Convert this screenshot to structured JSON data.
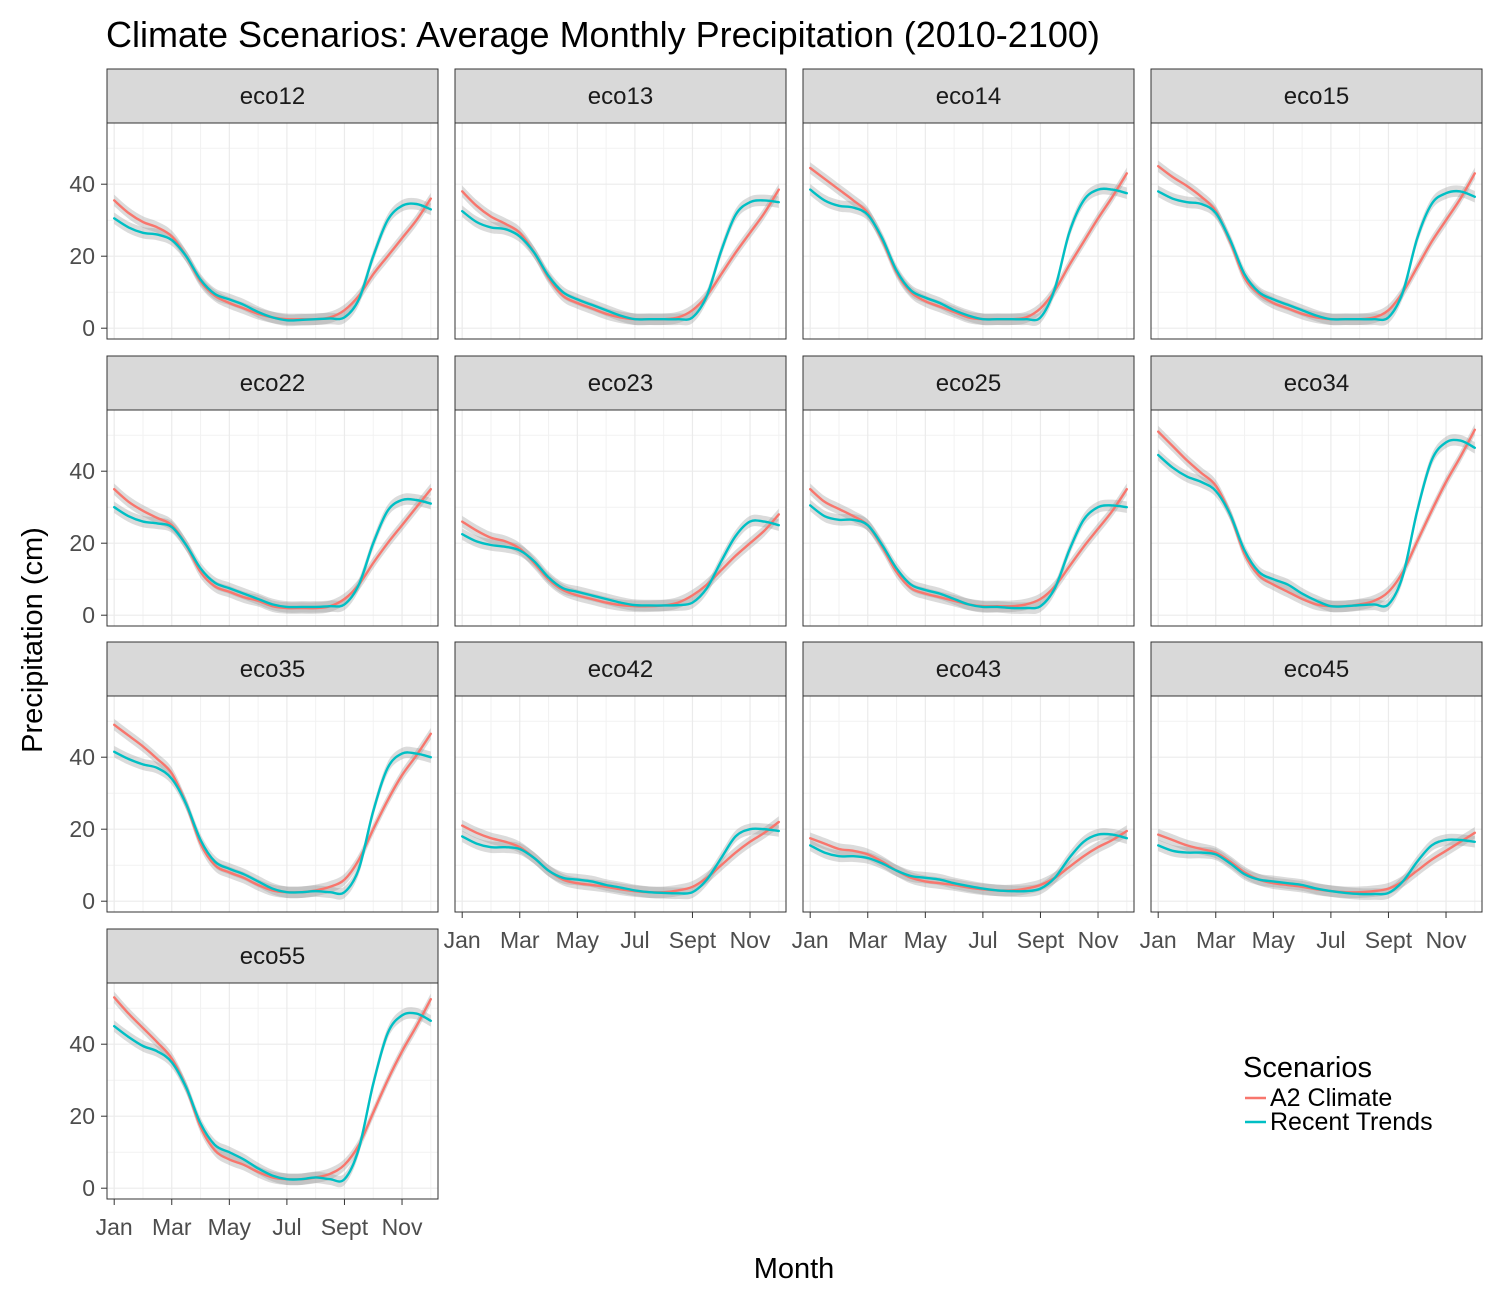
{
  "chart_data": {
    "type": "line",
    "title": "Climate Scenarios: Average Monthly Precipitation (2010-2100)",
    "xlabel": "Month",
    "ylabel": "Precipitation (cm)",
    "x_ticks": [
      "Jan",
      "Mar",
      "May",
      "Jul",
      "Sept",
      "Nov"
    ],
    "x_tick_values": [
      1,
      3,
      5,
      7,
      9,
      11
    ],
    "xlim": [
      0.75,
      12.25
    ],
    "y_ticks": [
      0,
      20,
      40
    ],
    "ylim": [
      -3,
      57
    ],
    "grid": true,
    "legend": {
      "title": "Scenarios",
      "position": "right-bottom",
      "entries": [
        {
          "name": "A2 Climate",
          "color": "#F8766D"
        },
        {
          "name": "Recent Trends",
          "color": "#00BFC4"
        }
      ]
    },
    "x": [
      1,
      1.5,
      2,
      2.5,
      3,
      3.5,
      4,
      4.5,
      5,
      5.5,
      6,
      6.5,
      7,
      7.5,
      8,
      8.5,
      9,
      9.5,
      10,
      10.5,
      11,
      11.5,
      12
    ],
    "panels": [
      {
        "label": "eco12",
        "series": [
          {
            "name": "A2 Climate",
            "values": [
              35.5,
              32,
              29.5,
              28,
              25.5,
              20,
              13,
              9,
              7,
              5.5,
              4,
              3,
              2.5,
              2.5,
              2.5,
              3,
              5,
              9,
              15,
              20,
              25,
              30,
              36
            ]
          },
          {
            "name": "Recent Trends",
            "values": [
              30.5,
              28,
              26.5,
              26,
              24.5,
              20,
              13.5,
              9.5,
              8,
              6.5,
              4.5,
              3,
              2.2,
              2.3,
              2.5,
              2.7,
              3,
              8,
              20,
              30,
              34,
              34.5,
              33
            ]
          }
        ]
      },
      {
        "label": "eco13",
        "series": [
          {
            "name": "A2 Climate",
            "values": [
              38,
              34,
              31,
              29,
              26.5,
              21,
              14,
              9,
              7,
              5.5,
              4,
              3,
              2.5,
              2.5,
              2.5,
              3,
              5,
              9,
              15,
              21,
              26.5,
              32,
              38.5
            ]
          },
          {
            "name": "Recent Trends",
            "values": [
              32.5,
              29.5,
              28,
              27.5,
              25.5,
              21,
              14.5,
              10,
              8,
              6.5,
              5,
              3.5,
              2.5,
              2.5,
              2.5,
              2.5,
              3,
              9,
              21.5,
              31.5,
              35,
              35.5,
              35
            ]
          }
        ]
      },
      {
        "label": "eco14",
        "series": [
          {
            "name": "A2 Climate",
            "values": [
              44.5,
              41.5,
              38.5,
              35.5,
              32,
              24.5,
              15.5,
              10,
              7.5,
              6,
              4.5,
              3,
              2.5,
              2.5,
              2.5,
              3,
              5.5,
              10.5,
              17.5,
              24,
              30.5,
              36.5,
              43
            ]
          },
          {
            "name": "Recent Trends",
            "values": [
              38.5,
              35.5,
              34,
              33.5,
              31.5,
              25,
              16,
              10.5,
              8.5,
              7,
              5,
              3.5,
              2.5,
              2.5,
              2.5,
              2.5,
              3,
              11,
              26.5,
              35.5,
              38.5,
              38.5,
              37.5
            ]
          }
        ]
      },
      {
        "label": "eco15",
        "series": [
          {
            "name": "A2 Climate",
            "values": [
              45,
              42,
              39.5,
              36.5,
              32.5,
              24,
              14,
              9.5,
              7,
              5.5,
              4,
              3,
              2.5,
              2.5,
              2.5,
              3,
              5,
              10,
              17,
              24,
              30,
              36,
              43
            ]
          },
          {
            "name": "Recent Trends",
            "values": [
              38,
              36,
              35,
              34.5,
              32,
              24.5,
              15,
              10,
              8,
              6.5,
              5,
              3.5,
              2.5,
              2.5,
              2.5,
              2.5,
              3,
              10,
              25,
              34.5,
              37.5,
              38,
              36.5
            ]
          }
        ]
      },
      {
        "label": "eco22",
        "series": [
          {
            "name": "A2 Climate",
            "values": [
              35,
              31.5,
              29,
              27,
              25,
              19.5,
              12,
              8,
              6.5,
              5,
              4,
              2.5,
              2,
              2,
              2,
              2.5,
              4.5,
              8.5,
              14.5,
              20,
              25,
              30,
              35
            ]
          },
          {
            "name": "Recent Trends",
            "values": [
              30,
              27.5,
              26,
              25.5,
              24.5,
              19.5,
              13,
              9,
              7.5,
              6,
              4.5,
              3,
              2.3,
              2.3,
              2.3,
              2.5,
              3,
              8.5,
              20,
              29,
              32,
              32,
              31
            ]
          }
        ]
      },
      {
        "label": "eco23",
        "series": [
          {
            "name": "A2 Climate",
            "values": [
              26,
              23.5,
              21.5,
              20.5,
              18.5,
              14.5,
              10,
              7,
              5.5,
              4.5,
              3.5,
              2.8,
              2.5,
              2.5,
              2.7,
              3.5,
              5.5,
              8.5,
              12.5,
              16.5,
              20,
              23.5,
              28
            ]
          },
          {
            "name": "Recent Trends",
            "values": [
              22.5,
              20.5,
              19.5,
              19,
              18,
              15,
              10.5,
              7.5,
              6.5,
              5.5,
              4.5,
              3.5,
              2.8,
              2.7,
              2.7,
              2.8,
              3.5,
              7.5,
              15,
              22,
              26,
              26,
              25
            ]
          }
        ]
      },
      {
        "label": "eco25",
        "series": [
          {
            "name": "A2 Climate",
            "values": [
              35,
              31.5,
              29.5,
              27.5,
              25,
              19,
              12,
              7.5,
              6,
              5,
              4,
              3,
              2.5,
              2.5,
              2.5,
              3,
              4.5,
              8,
              13.5,
              19,
              24,
              29,
              35
            ]
          },
          {
            "name": "Recent Trends",
            "values": [
              30.5,
              27.5,
              26.5,
              26.5,
              25,
              19.5,
              13,
              8.5,
              7,
              6,
              4.5,
              3,
              2.3,
              2.3,
              2,
              2,
              2.5,
              7.5,
              18,
              26.5,
              30,
              30.5,
              30
            ]
          }
        ]
      },
      {
        "label": "eco34",
        "series": [
          {
            "name": "A2 Climate",
            "values": [
              51,
              47,
              43,
              39.5,
              36,
              28,
              17,
              11,
              8.5,
              6.5,
              4.5,
              3,
              2.5,
              2.5,
              3,
              4,
              6.5,
              12,
              20.5,
              29,
              37,
              44,
              51.5
            ]
          },
          {
            "name": "Recent Trends",
            "values": [
              44.5,
              41,
              38.5,
              37,
              34.5,
              28,
              18,
              12,
              10,
              8.5,
              6,
              4,
              2.5,
              2.5,
              2.8,
              3,
              3,
              11,
              29,
              43,
              48,
              48.5,
              46.5
            ]
          }
        ]
      },
      {
        "label": "eco35",
        "series": [
          {
            "name": "A2 Climate",
            "values": [
              49,
              46,
              43,
              39.5,
              35.5,
              27,
              16,
              10,
              8,
              6.5,
              4.5,
              3,
              2.5,
              2.5,
              3,
              4,
              6,
              11.5,
              20,
              28,
              35,
              40.5,
              46.5
            ]
          },
          {
            "name": "Recent Trends",
            "values": [
              41.5,
              39.5,
              38,
              37,
              34,
              27,
              17,
              11,
              9,
              7.5,
              5.5,
              3.5,
              2.5,
              2.5,
              2.8,
              2.5,
              2.5,
              9,
              25,
              37,
              41,
              41,
              40
            ]
          }
        ]
      },
      {
        "label": "eco42",
        "series": [
          {
            "name": "A2 Climate",
            "values": [
              21,
              19,
              17.5,
              16.5,
              15,
              12,
              8.5,
              6,
              5,
              4.5,
              4,
              3.3,
              2.8,
              2.5,
              2.5,
              3,
              4,
              6.5,
              10,
              13.5,
              16.5,
              19,
              22
            ]
          },
          {
            "name": "Recent Trends",
            "values": [
              18,
              16,
              15,
              15,
              14.5,
              12,
              8.5,
              6.5,
              6,
              5.5,
              4.5,
              3.8,
              3,
              2.5,
              2.3,
              2.2,
              2.5,
              6,
              12,
              18,
              20,
              20,
              19.5
            ]
          }
        ]
      },
      {
        "label": "eco43",
        "series": [
          {
            "name": "A2 Climate",
            "values": [
              17.5,
              16,
              14.5,
              14,
              13,
              11,
              8.5,
              6.5,
              5.5,
              5,
              4.5,
              3.8,
              3.3,
              3,
              3,
              3.5,
              4.5,
              6.5,
              9.5,
              12.5,
              15,
              17,
              19.5
            ]
          },
          {
            "name": "Recent Trends",
            "values": [
              15.5,
              13.5,
              12.5,
              12.5,
              12,
              10.5,
              8.5,
              7,
              6.5,
              6,
              5,
              4.2,
              3.5,
              3,
              2.8,
              2.8,
              3.5,
              6.5,
              12,
              16.5,
              18.5,
              18.5,
              17.5
            ]
          }
        ]
      },
      {
        "label": "eco45",
        "series": [
          {
            "name": "A2 Climate",
            "values": [
              18.5,
              17,
              15.5,
              14.5,
              13.5,
              11,
              8,
              6,
              5,
              4.5,
              4,
              3.3,
              2.8,
              2.5,
              2.5,
              2.8,
              3.5,
              5.5,
              8.5,
              11.5,
              14,
              16.5,
              19
            ]
          },
          {
            "name": "Recent Trends",
            "values": [
              15.5,
              14,
              13.5,
              13.5,
              13,
              10.5,
              7.5,
              6,
              5.5,
              5,
              4.5,
              3.5,
              2.8,
              2.3,
              2,
              2,
              2.3,
              5.5,
              11,
              15.5,
              17,
              17,
              16.5
            ]
          }
        ]
      },
      {
        "label": "eco55",
        "series": [
          {
            "name": "A2 Climate",
            "values": [
              53,
              48.5,
              44.5,
              40.5,
              36,
              28,
              17,
              10.5,
              8,
              6.5,
              4.5,
              3,
              2.5,
              2.5,
              3,
              4,
              6.5,
              12,
              21,
              30,
              38,
              45,
              52.5
            ]
          },
          {
            "name": "Recent Trends",
            "values": [
              45,
              42,
              39.5,
              38,
              35,
              28,
              18,
              12,
              10,
              8,
              5.5,
              3.5,
              2.5,
              2.5,
              3,
              2.5,
              2.5,
              11,
              29,
              43,
              48,
              48.5,
              46.5
            ]
          }
        ]
      }
    ]
  }
}
